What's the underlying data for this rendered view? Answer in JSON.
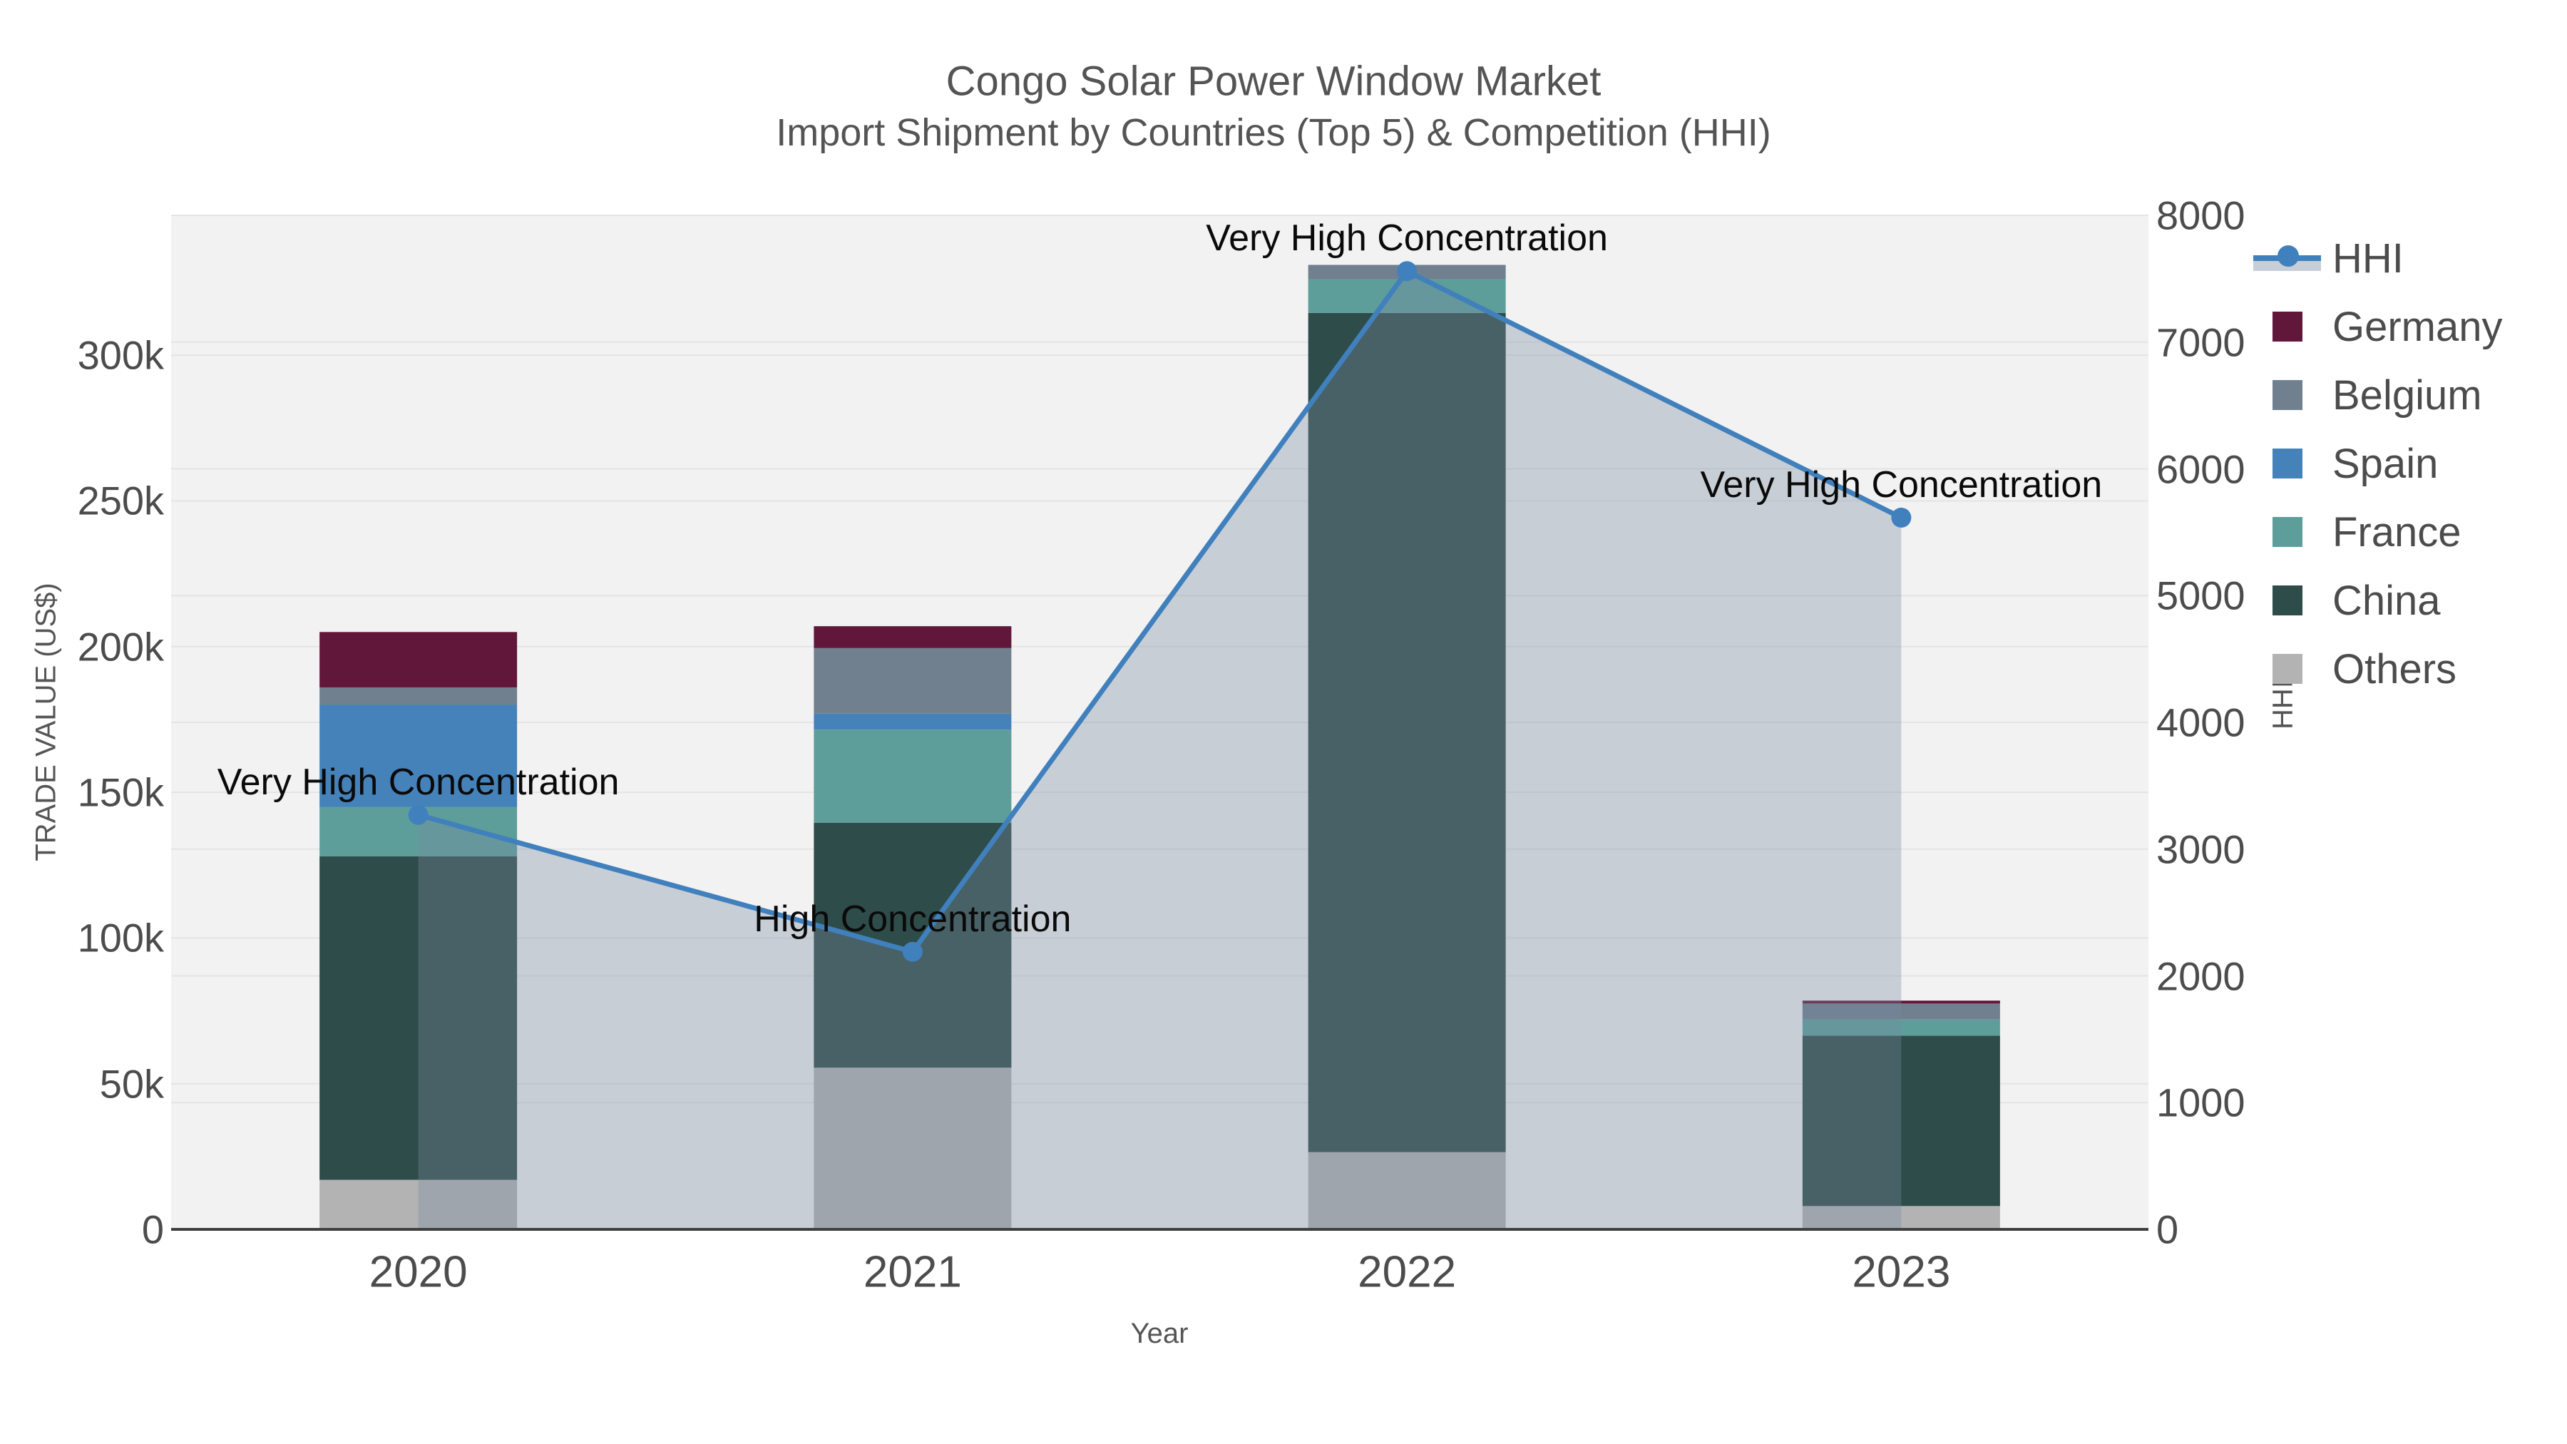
{
  "title": {
    "line1": "Congo Solar Power Window Market",
    "line2": "Import Shipment by Countries (Top 5) & Competition (HHI)"
  },
  "axes": {
    "x_title": "Year",
    "y_left_title": "TRADE VALUE (US$)",
    "y_right_title": "HHI",
    "x_ticks": [
      "2020",
      "2021",
      "2022",
      "2023"
    ],
    "y_left_ticks": [
      {
        "v": 0,
        "label": "0"
      },
      {
        "v": 50000,
        "label": "50k"
      },
      {
        "v": 100000,
        "label": "100k"
      },
      {
        "v": 150000,
        "label": "150k"
      },
      {
        "v": 200000,
        "label": "200k"
      },
      {
        "v": 250000,
        "label": "250k"
      },
      {
        "v": 300000,
        "label": "300k"
      }
    ],
    "y_right_ticks": [
      {
        "v": 0,
        "label": "0"
      },
      {
        "v": 1000,
        "label": "1000"
      },
      {
        "v": 2000,
        "label": "2000"
      },
      {
        "v": 3000,
        "label": "3000"
      },
      {
        "v": 4000,
        "label": "4000"
      },
      {
        "v": 5000,
        "label": "5000"
      },
      {
        "v": 6000,
        "label": "6000"
      },
      {
        "v": 7000,
        "label": "7000"
      },
      {
        "v": 8000,
        "label": "8000"
      }
    ]
  },
  "legend": {
    "items": [
      {
        "label": "HHI",
        "type": "line",
        "color": "#4080bd"
      },
      {
        "label": "Germany",
        "type": "square",
        "color": "#61173a"
      },
      {
        "label": "Belgium",
        "type": "square",
        "color": "#70808f"
      },
      {
        "label": "Spain",
        "type": "square",
        "color": "#4582ba"
      },
      {
        "label": "France",
        "type": "square",
        "color": "#5d9e9b"
      },
      {
        "label": "China",
        "type": "square",
        "color": "#2e4c49"
      },
      {
        "label": "Others",
        "type": "square",
        "color": "#b3b3b3"
      }
    ]
  },
  "chart_data": {
    "type": "combo: stacked bar + line (dual axis)",
    "categories": [
      "2020",
      "2021",
      "2022",
      "2023"
    ],
    "bar_value_unit": "US$ trade value",
    "series": [
      {
        "name": "Others",
        "color": "#b3b3b3",
        "values": [
          17000,
          55500,
          26500,
          8000
        ]
      },
      {
        "name": "China",
        "color": "#2e4c49",
        "values": [
          111000,
          84000,
          288000,
          58500
        ]
      },
      {
        "name": "France",
        "color": "#5d9e9b",
        "values": [
          17000,
          32000,
          11500,
          5500
        ]
      },
      {
        "name": "Spain",
        "color": "#4582ba",
        "values": [
          35000,
          5500,
          0,
          0
        ]
      },
      {
        "name": "Belgium",
        "color": "#70808f",
        "values": [
          6000,
          22500,
          5000,
          5500
        ]
      },
      {
        "name": "Germany",
        "color": "#61173a",
        "values": [
          19000,
          7500,
          0,
          1000
        ]
      }
    ],
    "line_series": {
      "name": "HHI",
      "color": "#4080bd",
      "values": [
        3270,
        2190,
        7560,
        5615
      ],
      "fill_color": "#778ba2",
      "fill_opacity": 0.34
    },
    "annotations": [
      {
        "category": "2020",
        "text": "Very High Concentration"
      },
      {
        "category": "2021",
        "text": "High Concentration"
      },
      {
        "category": "2022",
        "text": "Very High Concentration"
      },
      {
        "category": "2023",
        "text": "Very High Concentration"
      }
    ],
    "y_left_max": 348000,
    "y_right_max": 8000,
    "ylim_left": [
      0,
      348000
    ],
    "ylim_right": [
      0,
      8000
    ],
    "grid": true,
    "legend_position": "top-right outside",
    "plot_bg": "#f2f2f2",
    "grid_color": "#e4e4e4",
    "axis_line_color": "#3f3f3f",
    "text_color": "#4c4c4c"
  }
}
